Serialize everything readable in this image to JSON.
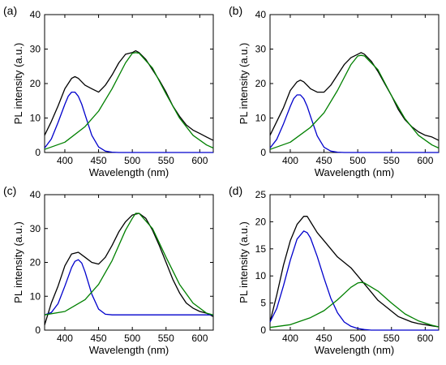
{
  "chart_data": [
    {
      "panel_label": "(a)",
      "type": "line",
      "xlabel": "Wavelength (nm)",
      "ylabel": "PL intensity (a.u.)",
      "xlim": [
        370,
        620
      ],
      "ylim": [
        0,
        40
      ],
      "xticks": [
        400,
        450,
        500,
        550,
        600
      ],
      "yticks": [
        0,
        10,
        20,
        30,
        40
      ],
      "series": [
        {
          "color": "#000000",
          "x": [
            370,
            380,
            390,
            400,
            410,
            415,
            420,
            430,
            440,
            450,
            460,
            470,
            480,
            490,
            500,
            505,
            510,
            520,
            530,
            540,
            550,
            560,
            570,
            580,
            590,
            600,
            610,
            620
          ],
          "y": [
            5,
            9,
            13.5,
            18.5,
            21.5,
            22,
            21.5,
            19.5,
            18.5,
            17.5,
            19.5,
            22.5,
            26,
            28.5,
            29,
            29.5,
            29,
            27,
            24,
            21,
            17.5,
            13.5,
            10.5,
            8,
            6.5,
            5.5,
            4.5,
            3.5
          ]
        },
        {
          "color": "#0000cc",
          "x": [
            370,
            380,
            390,
            400,
            405,
            410,
            415,
            420,
            425,
            430,
            440,
            450,
            460,
            470,
            480,
            500,
            550,
            620
          ],
          "y": [
            1.3,
            3.9,
            8.7,
            14.0,
            16.3,
            17.5,
            17.5,
            16.3,
            14.0,
            11.0,
            5.0,
            1.6,
            0.4,
            0.1,
            0,
            0,
            0,
            0
          ]
        },
        {
          "color": "#008000",
          "x": [
            370,
            400,
            430,
            450,
            470,
            490,
            500,
            505,
            510,
            530,
            550,
            570,
            590,
            610,
            620
          ],
          "y": [
            0.9,
            3.0,
            7.5,
            12.0,
            18.5,
            26.0,
            28.8,
            29.0,
            28.8,
            24.5,
            17.0,
            10.0,
            5.0,
            2.2,
            1.3
          ]
        }
      ]
    },
    {
      "panel_label": "(b)",
      "type": "line",
      "xlabel": "Wavelength (nm)",
      "ylabel": "PL intensity (a.u.)",
      "xlim": [
        370,
        620
      ],
      "ylim": [
        0,
        40
      ],
      "xticks": [
        400,
        450,
        500,
        550,
        600
      ],
      "yticks": [
        0,
        10,
        20,
        30,
        40
      ],
      "series": [
        {
          "color": "#000000",
          "x": [
            370,
            380,
            390,
            400,
            410,
            415,
            420,
            430,
            440,
            450,
            460,
            470,
            480,
            490,
            500,
            505,
            510,
            520,
            530,
            540,
            550,
            560,
            570,
            580,
            590,
            600,
            610,
            620
          ],
          "y": [
            5,
            9,
            13,
            18,
            20.5,
            21,
            20.5,
            18.5,
            17.5,
            17.5,
            19.5,
            22.5,
            25.5,
            27.5,
            28.5,
            29,
            28.5,
            26.5,
            23.5,
            20,
            16.5,
            12.5,
            9.5,
            7.5,
            6,
            5,
            4.5,
            3.5
          ]
        },
        {
          "color": "#0000cc",
          "x": [
            370,
            380,
            390,
            400,
            405,
            410,
            415,
            420,
            425,
            430,
            440,
            450,
            460,
            470,
            480,
            500,
            550,
            620
          ],
          "y": [
            1.3,
            3.8,
            8.3,
            13.4,
            15.6,
            16.7,
            16.7,
            15.6,
            13.4,
            10.5,
            4.8,
            1.5,
            0.4,
            0.1,
            0,
            0,
            0,
            0
          ]
        },
        {
          "color": "#008000",
          "x": [
            370,
            400,
            430,
            450,
            470,
            490,
            500,
            505,
            510,
            530,
            550,
            570,
            590,
            610,
            620
          ],
          "y": [
            0.9,
            3.0,
            7.3,
            11.5,
            18.0,
            25.5,
            28.0,
            28.2,
            28.0,
            24.0,
            16.5,
            9.8,
            5.0,
            2.2,
            1.3
          ]
        }
      ]
    },
    {
      "panel_label": "(c)",
      "type": "line",
      "xlabel": "Wavelength (nm)",
      "ylabel": "PL intensity (a.u.)",
      "xlim": [
        370,
        620
      ],
      "ylim": [
        0,
        40
      ],
      "xticks": [
        400,
        450,
        500,
        550,
        600
      ],
      "yticks": [
        0,
        10,
        20,
        30,
        40
      ],
      "series": [
        {
          "color": "#000000",
          "x": [
            370,
            380,
            390,
            400,
            410,
            420,
            430,
            440,
            450,
            460,
            470,
            480,
            490,
            500,
            510,
            520,
            530,
            540,
            550,
            560,
            570,
            580,
            590,
            600,
            610,
            620
          ],
          "y": [
            1.5,
            8,
            13,
            19,
            22.5,
            23,
            21.5,
            20,
            19.5,
            21.5,
            25,
            29,
            32,
            34,
            34.5,
            33,
            29.5,
            25,
            20,
            15,
            11,
            8,
            6.5,
            5.5,
            5,
            4
          ]
        },
        {
          "color": "#0000cc",
          "x": [
            370,
            380,
            390,
            400,
            410,
            415,
            420,
            425,
            430,
            440,
            450,
            460,
            470,
            480,
            500,
            550,
            620
          ],
          "y": [
            4.5,
            5.2,
            7.8,
            13.0,
            18.5,
            20.3,
            20.8,
            19.8,
            17.2,
            10.6,
            6.2,
            4.7,
            4.5,
            4.5,
            4.5,
            4.5,
            4.5
          ]
        },
        {
          "color": "#008000",
          "x": [
            370,
            400,
            430,
            450,
            470,
            490,
            500,
            505,
            510,
            530,
            550,
            570,
            590,
            610,
            620
          ],
          "y": [
            4.5,
            5.5,
            9.0,
            13.5,
            20.5,
            29.5,
            33.0,
            34.5,
            34.5,
            30.0,
            21.5,
            13.5,
            8.0,
            5.0,
            4.5
          ]
        }
      ]
    },
    {
      "panel_label": "(d)",
      "type": "line",
      "xlabel": "Wavelength (nm)",
      "ylabel": "PL intensity (a.u.)",
      "xlim": [
        370,
        620
      ],
      "ylim": [
        0,
        25
      ],
      "xticks": [
        400,
        450,
        500,
        550,
        600
      ],
      "yticks": [
        0,
        5,
        10,
        15,
        20,
        25
      ],
      "series": [
        {
          "color": "#000000",
          "x": [
            370,
            380,
            390,
            400,
            410,
            420,
            425,
            430,
            440,
            450,
            460,
            470,
            480,
            490,
            500,
            510,
            520,
            530,
            540,
            550,
            560,
            570,
            580,
            590,
            600,
            610,
            620
          ],
          "y": [
            1.5,
            6.5,
            12,
            16.5,
            19.5,
            21,
            21,
            20,
            18,
            16.5,
            15,
            13.5,
            12.5,
            11.5,
            10,
            8.5,
            7,
            5.5,
            4.5,
            3.5,
            2.5,
            2,
            1.5,
            1.2,
            1,
            0.8,
            0.6
          ]
        },
        {
          "color": "#0000cc",
          "x": [
            370,
            380,
            390,
            400,
            410,
            420,
            425,
            430,
            440,
            450,
            460,
            470,
            480,
            490,
            500,
            510,
            520,
            530,
            550,
            620
          ],
          "y": [
            1.5,
            4.0,
            8.2,
            12.9,
            16.8,
            18.3,
            18.0,
            17.0,
            13.6,
            9.6,
            5.9,
            3.2,
            1.5,
            0.7,
            0.3,
            0.1,
            0,
            0,
            0,
            0
          ]
        },
        {
          "color": "#008000",
          "x": [
            370,
            400,
            430,
            450,
            470,
            490,
            500,
            505,
            510,
            530,
            550,
            570,
            590,
            610,
            620
          ],
          "y": [
            0.5,
            1.0,
            2.3,
            3.6,
            5.6,
            7.9,
            8.7,
            8.8,
            8.7,
            7.2,
            5.0,
            3.0,
            1.7,
            0.9,
            0.6
          ]
        }
      ]
    }
  ]
}
